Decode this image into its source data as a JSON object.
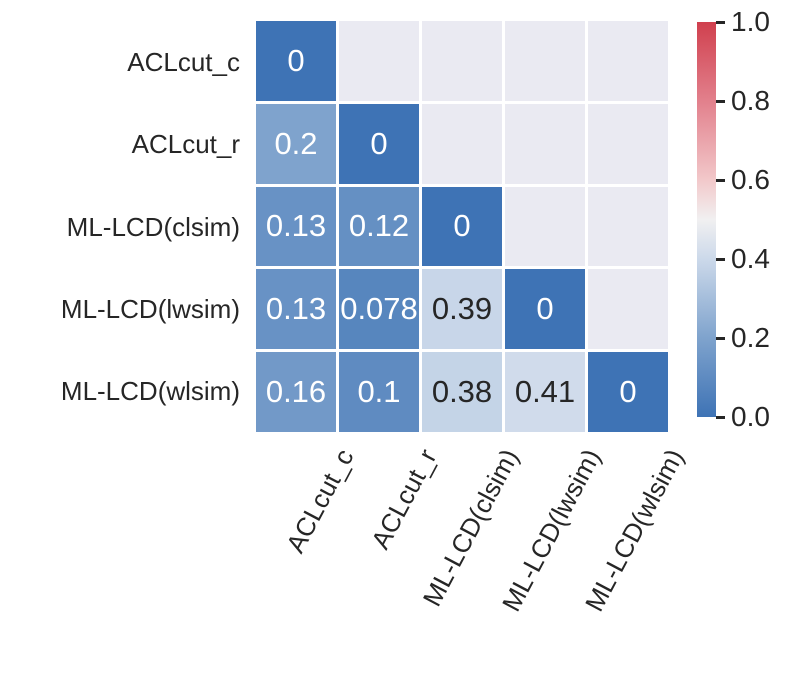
{
  "chart_data": {
    "type": "heatmap",
    "title": "",
    "categories": [
      "ACLcut_c",
      "ACLcut_r",
      "ML-LCD(clsim)",
      "ML-LCD(lwsim)",
      "ML-LCD(wlsim)"
    ],
    "matrix": [
      [
        0,
        null,
        null,
        null,
        null
      ],
      [
        0.2,
        0,
        null,
        null,
        null
      ],
      [
        0.13,
        0.12,
        0,
        null,
        null
      ],
      [
        0.13,
        0.078,
        0.39,
        0,
        null
      ],
      [
        0.16,
        0.1,
        0.38,
        0.41,
        0
      ]
    ],
    "annotations": [
      [
        "0"
      ],
      [
        "0.2",
        "0"
      ],
      [
        "0.13",
        "0.12",
        "0"
      ],
      [
        "0.13",
        "0.078",
        "0.39",
        "0"
      ],
      [
        "0.16",
        "0.1",
        "0.38",
        "0.41",
        "0"
      ]
    ],
    "mask": "upper-triangle",
    "colorbar": {
      "min": 0,
      "max": 1,
      "tick_labels": [
        "0.0",
        "0.2",
        "0.4",
        "0.6",
        "0.8",
        "1.0"
      ],
      "tick_values": [
        0,
        0.2,
        0.4,
        0.6,
        0.8,
        1.0
      ]
    },
    "colors": {
      "masked_bg": "#eaeaf2",
      "grid": "#ffffff",
      "annot_light": "#ffffff",
      "annot_dark": "#262626",
      "colormap_stops": [
        [
          0.0,
          "#3e73b5"
        ],
        [
          0.2,
          "#7fa3cd"
        ],
        [
          0.4,
          "#ccd9ea"
        ],
        [
          0.5,
          "#f1f0f1"
        ],
        [
          0.6,
          "#f2c8ca"
        ],
        [
          0.8,
          "#e2808c"
        ],
        [
          1.0,
          "#d0404e"
        ]
      ],
      "dark_text_threshold": 0.3
    },
    "layout": {
      "legend_position": "right",
      "x_tick_rotation_deg": 62
    }
  }
}
